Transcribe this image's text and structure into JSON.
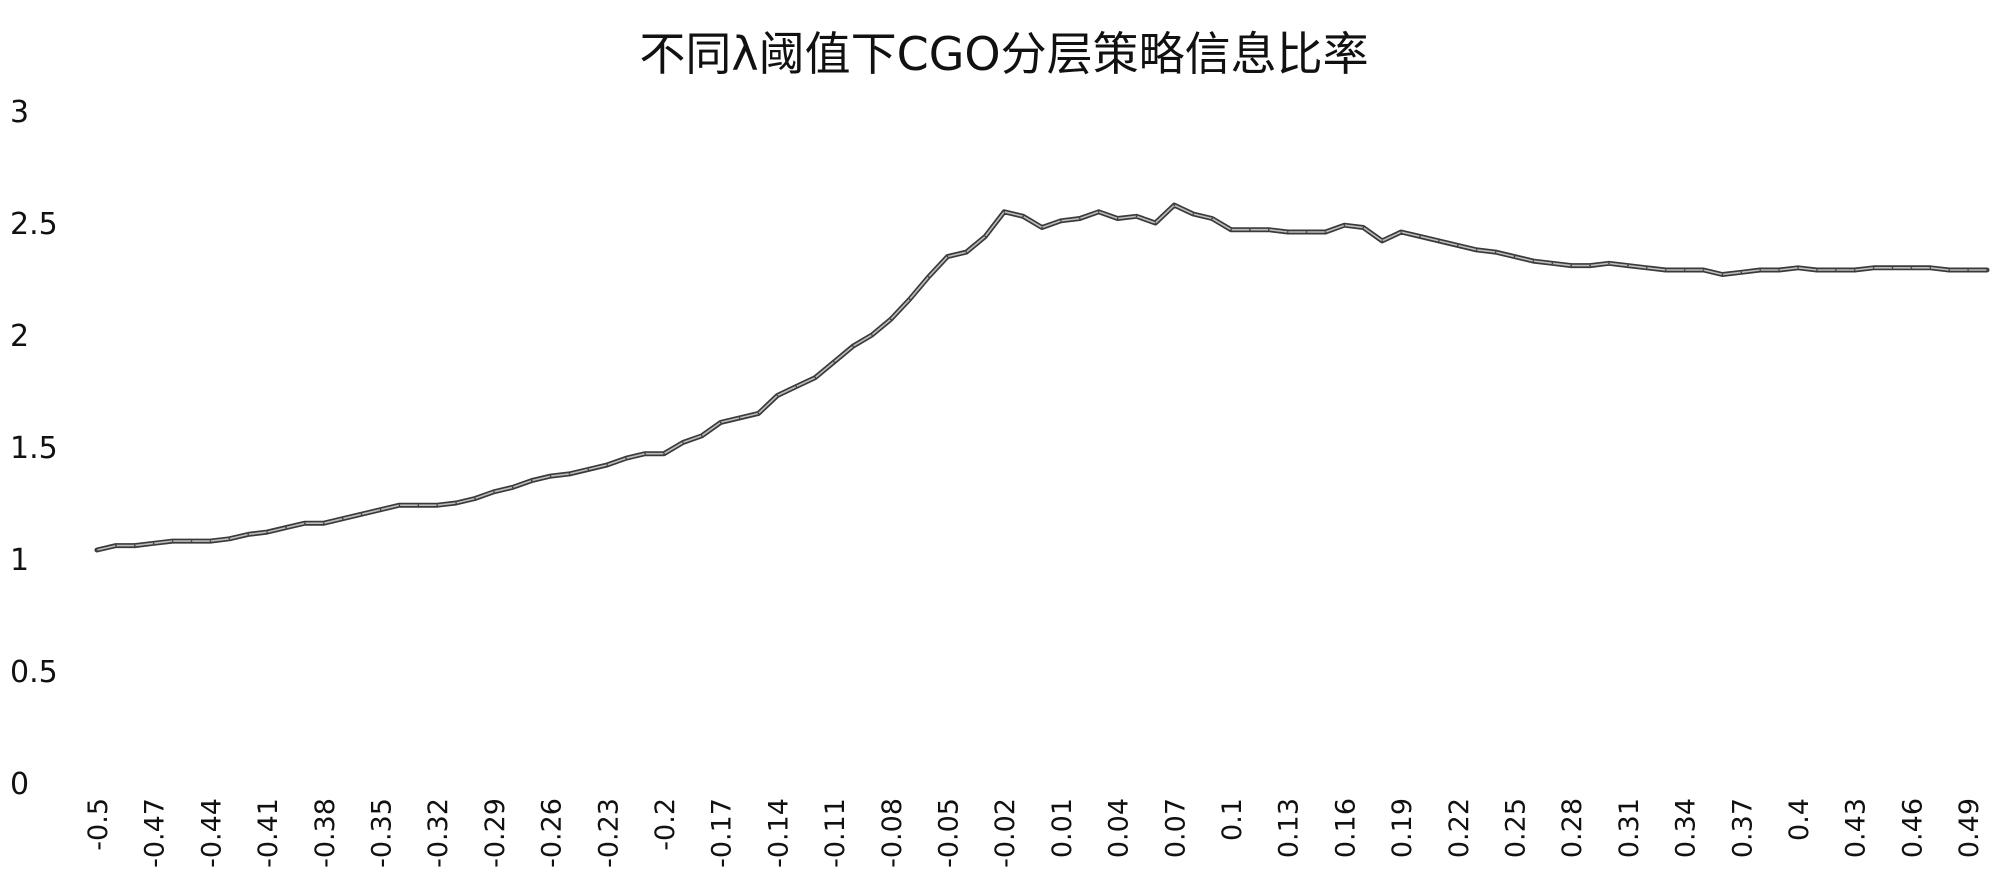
{
  "chart_data": {
    "type": "line",
    "title": "不同λ阈值下CGO分层策略信息比率",
    "xlabel": "",
    "ylabel": "",
    "ylim": [
      0,
      3
    ],
    "yticks": [
      "0",
      "0.5",
      "1",
      "1.5",
      "2",
      "2.5",
      "3"
    ],
    "grid": false,
    "legend": "none",
    "x": [
      -0.5,
      -0.49,
      -0.48,
      -0.47,
      -0.46,
      -0.45,
      -0.44,
      -0.43,
      -0.42,
      -0.41,
      -0.4,
      -0.39,
      -0.38,
      -0.37,
      -0.36,
      -0.35,
      -0.34,
      -0.33,
      -0.32,
      -0.31,
      -0.3,
      -0.29,
      -0.28,
      -0.27,
      -0.26,
      -0.25,
      -0.24,
      -0.23,
      -0.22,
      -0.21,
      -0.2,
      -0.19,
      -0.18,
      -0.17,
      -0.16,
      -0.15,
      -0.14,
      -0.13,
      -0.12,
      -0.11,
      -0.1,
      -0.09,
      -0.08,
      -0.07,
      -0.06,
      -0.05,
      -0.04,
      -0.03,
      -0.02,
      -0.01,
      0,
      0.01,
      0.02,
      0.03,
      0.04,
      0.05,
      0.06,
      0.07,
      0.08,
      0.09,
      0.1,
      0.11,
      0.12,
      0.13,
      0.14,
      0.15,
      0.16,
      0.17,
      0.18,
      0.19,
      0.2,
      0.21,
      0.22,
      0.23,
      0.24,
      0.25,
      0.26,
      0.27,
      0.28,
      0.29,
      0.3,
      0.31,
      0.32,
      0.33,
      0.34,
      0.35,
      0.36,
      0.37,
      0.38,
      0.39,
      0.4,
      0.41,
      0.42,
      0.43,
      0.44,
      0.45,
      0.46,
      0.47,
      0.48,
      0.49,
      0.5
    ],
    "xtick_labels": [
      "-0.5",
      "-0.47",
      "-0.44",
      "-0.41",
      "-0.38",
      "-0.35",
      "-0.32",
      "-0.29",
      "-0.26",
      "-0.23",
      "-0.2",
      "-0.17",
      "-0.14",
      "-0.11",
      "-0.08",
      "-0.05",
      "-0.02",
      "0.01",
      "0.04",
      "0.07",
      "0.1",
      "0.13",
      "0.16",
      "0.19",
      "0.22",
      "0.25",
      "0.28",
      "0.31",
      "0.34",
      "0.37",
      "0.4",
      "0.43",
      "0.46",
      "0.49"
    ],
    "series": [
      {
        "color": "#555555",
        "values": [
          1.04,
          1.06,
          1.06,
          1.07,
          1.08,
          1.08,
          1.08,
          1.09,
          1.11,
          1.12,
          1.14,
          1.16,
          1.16,
          1.18,
          1.2,
          1.22,
          1.24,
          1.24,
          1.24,
          1.25,
          1.27,
          1.3,
          1.32,
          1.35,
          1.37,
          1.38,
          1.4,
          1.42,
          1.45,
          1.47,
          1.47,
          1.52,
          1.55,
          1.61,
          1.63,
          1.65,
          1.73,
          1.77,
          1.81,
          1.88,
          1.95,
          2.0,
          2.07,
          2.16,
          2.26,
          2.35,
          2.37,
          2.44,
          2.55,
          2.53,
          2.48,
          2.51,
          2.52,
          2.55,
          2.52,
          2.53,
          2.5,
          2.58,
          2.54,
          2.52,
          2.47,
          2.47,
          2.47,
          2.46,
          2.46,
          2.46,
          2.49,
          2.48,
          2.42,
          2.46,
          2.44,
          2.42,
          2.4,
          2.38,
          2.37,
          2.35,
          2.33,
          2.32,
          2.31,
          2.31,
          2.32,
          2.31,
          2.3,
          2.29,
          2.29,
          2.29,
          2.27,
          2.28,
          2.29,
          2.29,
          2.3,
          2.29,
          2.29,
          2.29,
          2.3,
          2.3,
          2.3,
          2.3,
          2.29,
          2.29,
          2.29
        ]
      }
    ]
  }
}
